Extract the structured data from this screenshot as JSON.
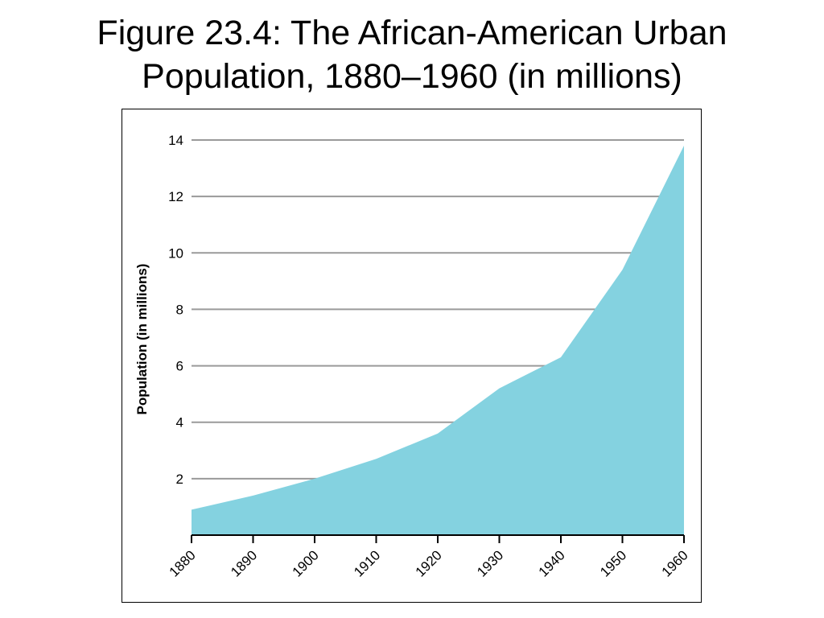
{
  "title": {
    "line1": "Figure 23.4: The African-American Urban",
    "line2": "Population, 1880–1960 (in millions)"
  },
  "colors": {
    "area": "#84d2e0",
    "grid": "#9a9a9a",
    "axis": "#000000"
  },
  "chart_data": {
    "type": "area",
    "title": "Figure 23.4: The African-American Urban Population, 1880–1960 (in millions)",
    "xlabel": "",
    "ylabel": "Population (in millions)",
    "x": [
      "1880",
      "1890",
      "1900",
      "1910",
      "1920",
      "1930",
      "1940",
      "1950",
      "1960"
    ],
    "series": [
      {
        "values": [
          0.9,
          1.4,
          2.0,
          2.7,
          3.6,
          5.2,
          6.3,
          9.4,
          13.8
        ]
      }
    ],
    "ylim": [
      0,
      14
    ],
    "yticks": [
      2,
      4,
      6,
      8,
      10,
      12,
      14
    ],
    "grid": true,
    "legend": "none"
  }
}
